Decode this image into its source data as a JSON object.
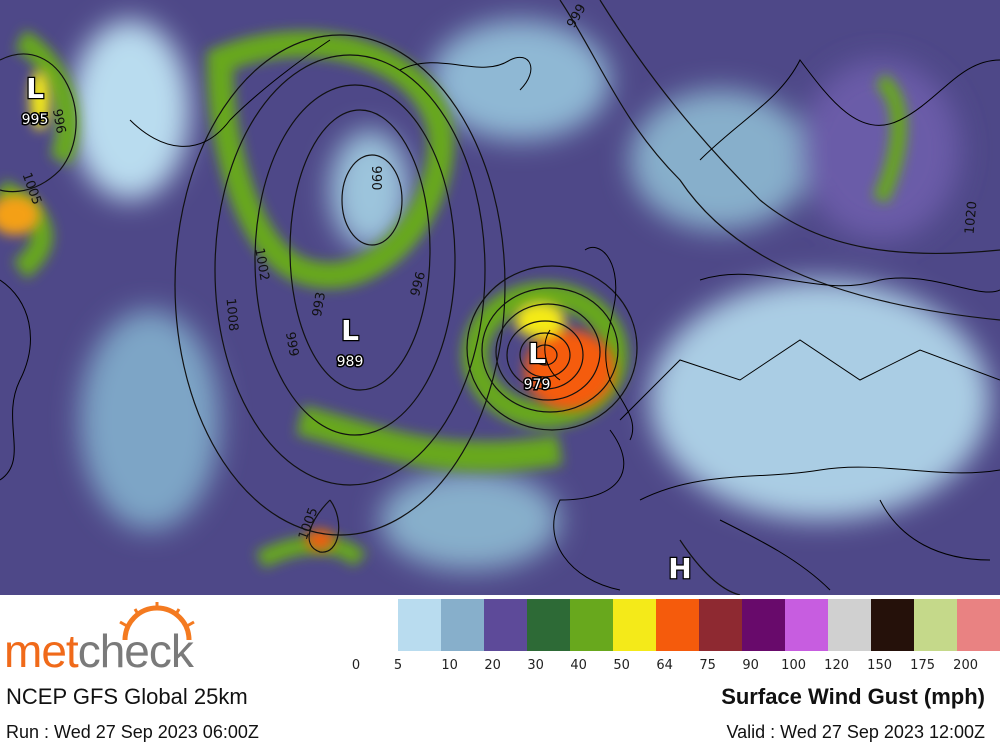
{
  "map": {
    "lows": [
      {
        "symbol": "L",
        "pressure": "995"
      },
      {
        "symbol": "L",
        "pressure": "989"
      },
      {
        "symbol": "L",
        "pressure": "979"
      }
    ],
    "high": {
      "symbol": "H"
    },
    "contour_labels": [
      "996",
      "1005",
      "999",
      "990",
      "1002",
      "1008",
      "993",
      "999",
      "996",
      "1005",
      "1020"
    ]
  },
  "legend": {
    "colors": [
      "#b9dcef",
      "#87afcb",
      "#5d4a99",
      "#2d6a36",
      "#68a81d",
      "#f4ea19",
      "#f55b0c",
      "#8e2931",
      "#680a6b",
      "#c75de0",
      "#d0d0d0",
      "#25110a",
      "#c5d98a",
      "#e98282"
    ],
    "labels": [
      "0",
      "5",
      "10",
      "20",
      "30",
      "40",
      "50",
      "64",
      "75",
      "90",
      "100",
      "120",
      "150",
      "175",
      "200"
    ]
  },
  "footer": {
    "logo_part1": "met",
    "logo_part2": "check",
    "model": "NCEP GFS Global 25km",
    "run": "Run : Wed 27 Sep 2023 06:00Z",
    "title": "Surface Wind Gust (mph)",
    "valid": "Valid : Wed 27 Sep 2023 12:00Z"
  }
}
